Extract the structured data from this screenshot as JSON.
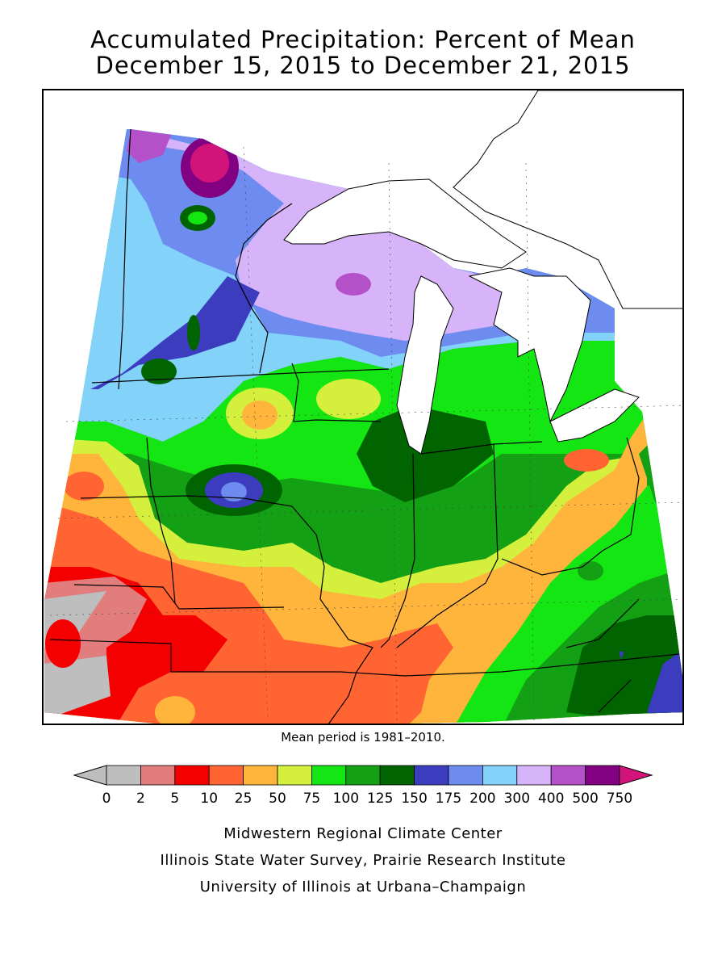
{
  "title": {
    "line1": "Accumulated Precipitation: Percent of Mean",
    "line2": "December 15, 2015 to December 21, 2015"
  },
  "mean_note": "Mean period is 1981–2010.",
  "legend": {
    "bins": [
      {
        "label": "0",
        "color": "#bebebe"
      },
      {
        "label": "2",
        "color": "#e17d7d"
      },
      {
        "label": "5",
        "color": "#f50000"
      },
      {
        "label": "10",
        "color": "#ff6432"
      },
      {
        "label": "25",
        "color": "#ffb43c"
      },
      {
        "label": "50",
        "color": "#d4f03c"
      },
      {
        "label": "75",
        "color": "#14e614"
      },
      {
        "label": "100",
        "color": "#14a014"
      },
      {
        "label": "125",
        "color": "#006400"
      },
      {
        "label": "150",
        "color": "#3c3cbe"
      },
      {
        "label": "175",
        "color": "#6e8cf0"
      },
      {
        "label": "200",
        "color": "#82d2fa"
      },
      {
        "label": "300",
        "color": "#d7b4fa"
      },
      {
        "label": "400",
        "color": "#b450c8"
      },
      {
        "label": "500",
        "color": "#820082"
      },
      {
        "label": "750",
        "color": "#d2147a"
      }
    ],
    "underflow_color": "#bebebe",
    "overflow_color": "#d2147a"
  },
  "credits": [
    "Midwestern Regional Climate Center",
    "Illinois State Water Survey, Prairie Research Institute",
    "University of Illinois at Urbana–Champaign"
  ],
  "colors": {
    "lake": "#ffffff",
    "border": "#000000"
  }
}
